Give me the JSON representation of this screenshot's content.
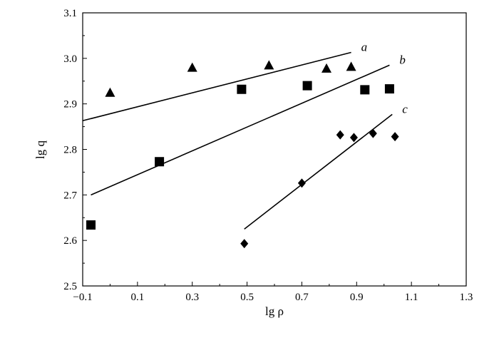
{
  "chart_data": {
    "type": "scatter",
    "xlabel": "lg ρ",
    "ylabel": "lg q",
    "xlim": [
      -0.1,
      1.3
    ],
    "ylim": [
      2.5,
      3.1
    ],
    "x_ticks": [
      -0.1,
      0.1,
      0.3,
      0.5,
      0.7,
      0.9,
      1.1,
      1.3
    ],
    "x_tick_labels": [
      "−0.1",
      "0.1",
      "0.3",
      "0.5",
      "0.7",
      "0.9",
      "1.1",
      "1.3"
    ],
    "y_ticks": [
      2.5,
      2.6,
      2.7,
      2.8,
      2.9,
      3.0,
      3.1
    ],
    "y_tick_labels": [
      "2.5",
      "2.6",
      "2.7",
      "2.8",
      "2.9",
      "3.0",
      "3.1"
    ],
    "grid": false,
    "legend": "none",
    "series": [
      {
        "name": "a",
        "marker": "triangle",
        "color": "#000000",
        "points": [
          [
            0.0,
            2.925
          ],
          [
            0.3,
            2.98
          ],
          [
            0.58,
            2.985
          ],
          [
            0.79,
            2.978
          ],
          [
            0.88,
            2.982
          ]
        ],
        "fit_line": [
          [
            -0.1,
            2.863
          ],
          [
            0.88,
            3.013
          ]
        ]
      },
      {
        "name": "b",
        "marker": "square",
        "color": "#000000",
        "points": [
          [
            -0.07,
            2.634
          ],
          [
            0.18,
            2.773
          ],
          [
            0.48,
            2.932
          ],
          [
            0.72,
            2.94
          ],
          [
            0.93,
            2.931
          ],
          [
            1.02,
            2.933
          ]
        ],
        "fit_line": [
          [
            -0.07,
            2.7
          ],
          [
            1.02,
            2.985
          ]
        ]
      },
      {
        "name": "c",
        "marker": "diamond",
        "color": "#000000",
        "points": [
          [
            0.49,
            2.593
          ],
          [
            0.7,
            2.726
          ],
          [
            0.84,
            2.832
          ],
          [
            0.89,
            2.826
          ],
          [
            0.96,
            2.835
          ],
          [
            1.04,
            2.828
          ]
        ],
        "fit_line": [
          [
            0.49,
            2.625
          ],
          [
            1.03,
            2.877
          ]
        ]
      }
    ]
  }
}
